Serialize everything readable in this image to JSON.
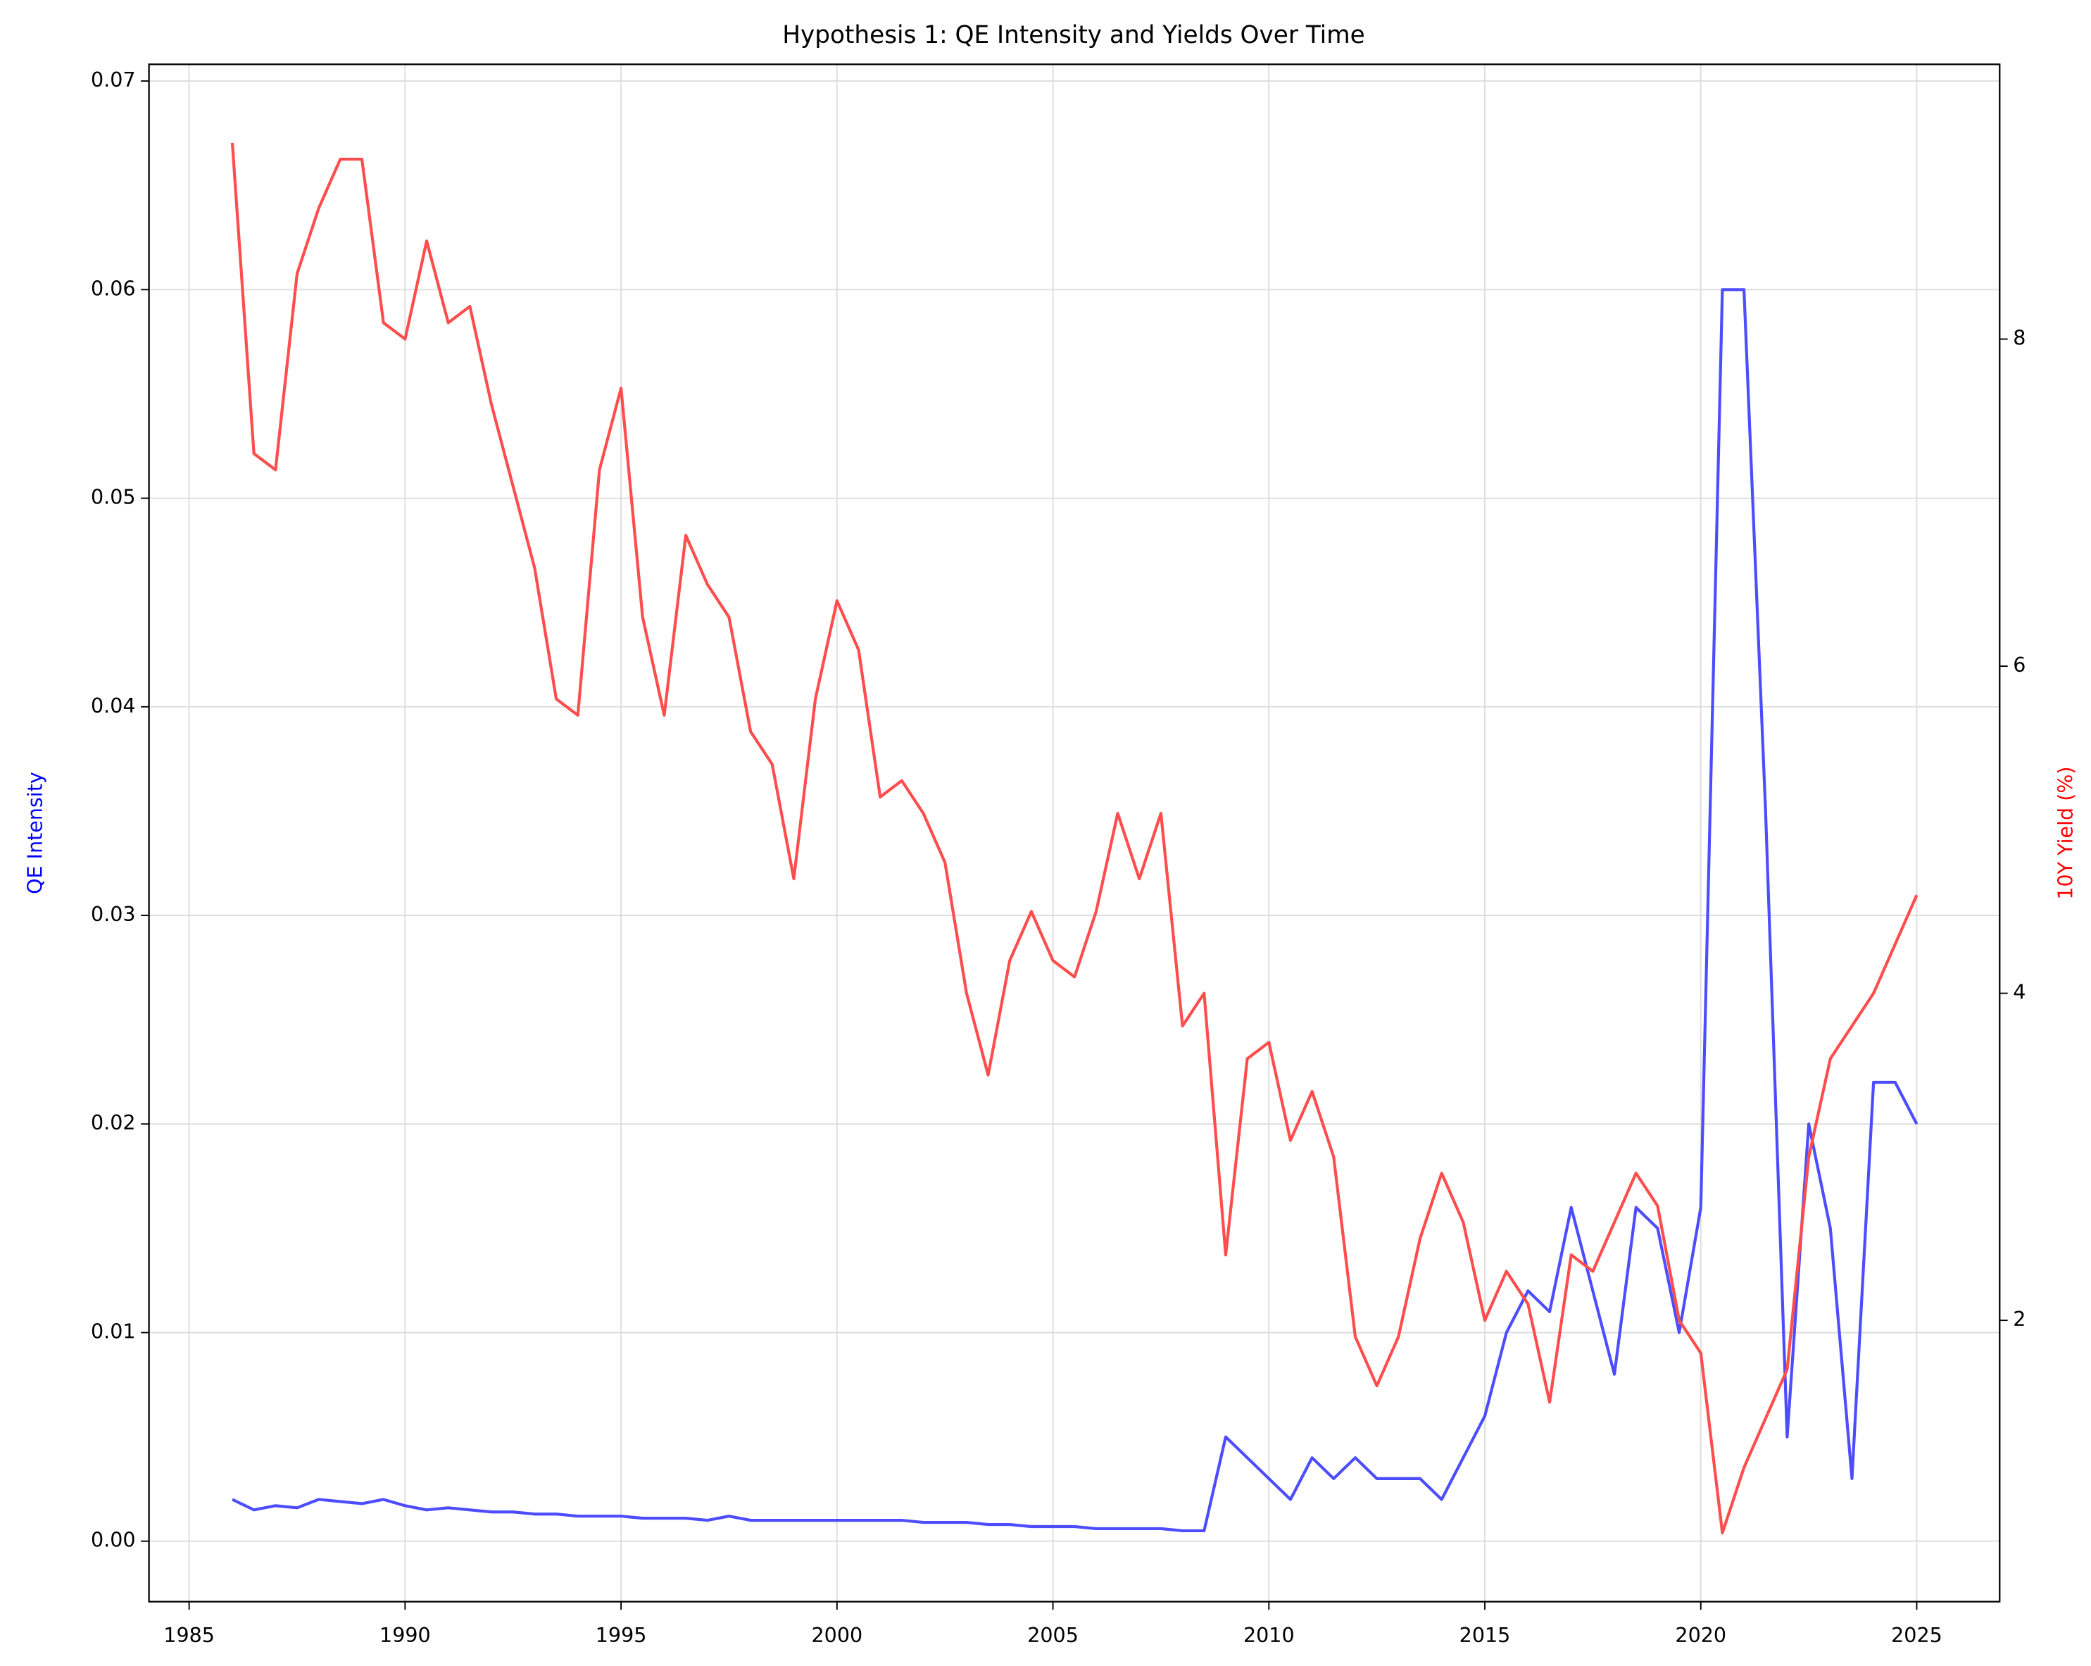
{
  "chart_data": {
    "type": "line",
    "title": "Hypothesis 1: QE Intensity and Yields Over Time",
    "y_label": "QE Intensity",
    "y2_label": "10Y Yield (%)",
    "x": [
      1986.0,
      1986.5,
      1987.0,
      1987.5,
      1988.0,
      1988.5,
      1989.0,
      1989.5,
      1990.0,
      1990.5,
      1991.0,
      1991.5,
      1992.0,
      1992.5,
      1993.0,
      1993.5,
      1994.0,
      1994.5,
      1995.0,
      1995.5,
      1996.0,
      1996.5,
      1997.0,
      1997.5,
      1998.0,
      1998.5,
      1999.0,
      1999.5,
      2000.0,
      2000.5,
      2001.0,
      2001.5,
      2002.0,
      2002.5,
      2003.0,
      2003.5,
      2004.0,
      2004.5,
      2005.0,
      2005.5,
      2006.0,
      2006.5,
      2007.0,
      2007.5,
      2008.0,
      2008.5,
      2009.0,
      2009.5,
      2010.0,
      2010.5,
      2011.0,
      2011.5,
      2012.0,
      2012.5,
      2013.0,
      2013.5,
      2014.0,
      2014.5,
      2015.0,
      2015.5,
      2016.0,
      2016.5,
      2017.0,
      2017.5,
      2018.0,
      2018.5,
      2019.0,
      2019.5,
      2020.0,
      2020.5,
      2021.0,
      2021.5,
      2022.0,
      2022.5,
      2023.0,
      2023.5,
      2024.0,
      2024.5,
      2025.0
    ],
    "series": [
      {
        "name": "QE Intensity",
        "color": "#4d4dff",
        "axis": "y",
        "values": [
          0.002,
          0.0015,
          0.0017,
          0.0016,
          0.002,
          0.0019,
          0.0018,
          0.002,
          0.0017,
          0.0015,
          0.0016,
          0.0015,
          0.0014,
          0.0014,
          0.0013,
          0.0013,
          0.0012,
          0.0012,
          0.0012,
          0.0011,
          0.0011,
          0.0011,
          0.001,
          0.0012,
          0.001,
          0.001,
          0.001,
          0.001,
          0.001,
          0.001,
          0.001,
          0.001,
          0.0009,
          0.0009,
          0.0009,
          0.0008,
          0.0008,
          0.0007,
          0.0007,
          0.0007,
          0.0006,
          0.0006,
          0.0006,
          0.0006,
          0.0005,
          0.0005,
          0.005,
          0.004,
          0.003,
          0.002,
          0.004,
          0.003,
          0.004,
          0.003,
          0.003,
          0.003,
          0.002,
          0.004,
          0.006,
          0.01,
          0.012,
          0.011,
          0.016,
          0.012,
          0.008,
          0.016,
          0.015,
          0.01,
          0.016,
          0.06,
          0.06,
          0.035,
          0.005,
          0.02,
          0.015,
          0.003,
          0.022,
          0.022,
          0.02
        ]
      },
      {
        "name": "10Y Yield (%)",
        "color": "#ff4d4d",
        "axis": "y2",
        "values": [
          9.2,
          7.3,
          7.2,
          8.4,
          8.8,
          9.1,
          9.1,
          8.1,
          8.0,
          8.6,
          8.1,
          8.2,
          7.6,
          7.1,
          6.6,
          5.8,
          5.7,
          7.2,
          7.7,
          6.3,
          5.7,
          6.8,
          6.5,
          6.3,
          5.6,
          5.4,
          4.7,
          5.8,
          6.4,
          6.1,
          5.2,
          5.3,
          5.1,
          4.8,
          4.0,
          3.5,
          4.2,
          4.5,
          4.2,
          4.1,
          4.5,
          5.1,
          4.7,
          5.1,
          3.8,
          4.0,
          2.4,
          3.6,
          3.7,
          3.1,
          3.4,
          3.0,
          1.9,
          1.6,
          1.9,
          2.5,
          2.9,
          2.6,
          2.0,
          2.3,
          2.1,
          1.5,
          2.4,
          2.3,
          2.6,
          2.9,
          2.7,
          2.0,
          1.8,
          0.7,
          1.1,
          1.4,
          1.7,
          3.0,
          3.6,
          3.8,
          4.0,
          4.3,
          4.6
        ]
      }
    ],
    "xlim": [
      1984.07,
      2026.92
    ],
    "xticks": [
      1985,
      1990,
      1995,
      2000,
      2005,
      2010,
      2015,
      2020,
      2025
    ],
    "ylim": [
      -0.0029,
      0.0708
    ],
    "yticks": [
      {
        "value": 0,
        "label": "0.00"
      },
      0.01,
      0.02,
      0.03,
      0.04,
      0.05,
      0.06,
      0.07
    ],
    "y2lim": [
      0.28,
      9.68
    ],
    "y2ticks": [
      2,
      4,
      6,
      8
    ],
    "grid": true
  }
}
